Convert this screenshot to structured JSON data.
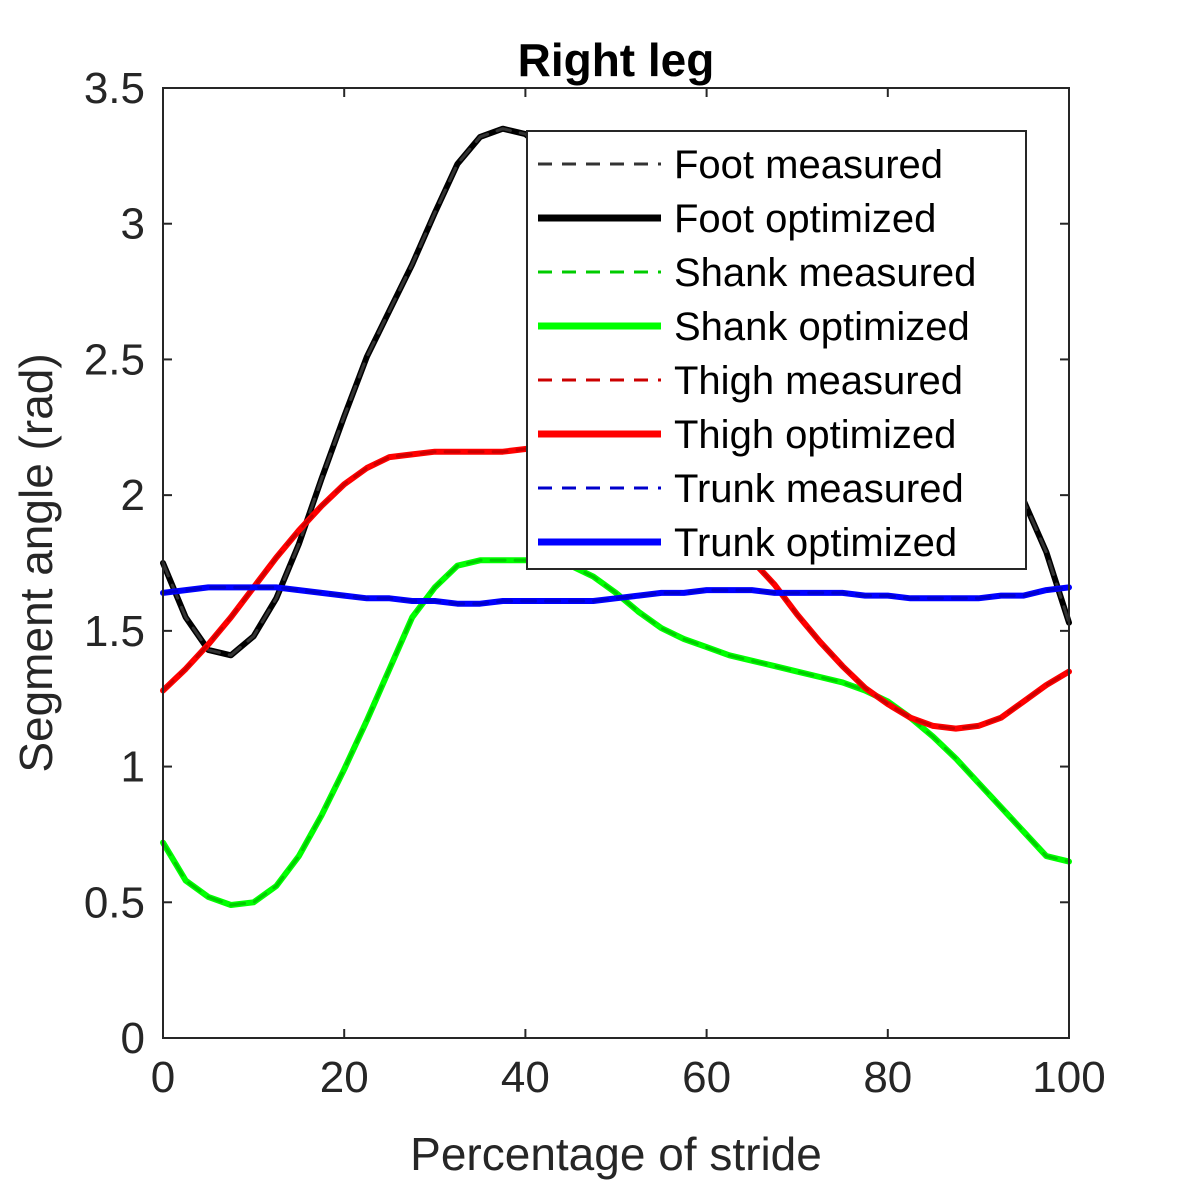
{
  "chart_data": {
    "type": "line",
    "title": "Right leg",
    "xlabel": "Percentage of stride",
    "ylabel": "Segment angle (rad)",
    "xlim": [
      0,
      100
    ],
    "ylim": [
      0,
      3.5
    ],
    "xticks": [
      0,
      20,
      40,
      60,
      80,
      100
    ],
    "yticks": [
      0,
      0.5,
      1,
      1.5,
      2,
      2.5,
      3,
      3.5
    ],
    "ytick_labels": [
      "0",
      "0.5",
      "1",
      "1.5",
      "2",
      "2.5",
      "3",
      "3.5"
    ],
    "xtick_labels": [
      "0",
      "20",
      "40",
      "60",
      "80",
      "100"
    ],
    "grid": false,
    "legend_position": "top-right",
    "x": [
      0,
      2.5,
      5,
      7.5,
      10,
      12.5,
      15,
      17.5,
      20,
      22.5,
      25,
      27.5,
      30,
      32.5,
      35,
      37.5,
      40,
      42.5,
      45,
      47.5,
      50,
      52.5,
      55,
      57.5,
      60,
      62.5,
      65,
      67.5,
      70,
      72.5,
      75,
      77.5,
      80,
      82.5,
      85,
      87.5,
      90,
      92.5,
      95,
      97.5,
      100
    ],
    "series": [
      {
        "name": "Foot measured",
        "color": "#333333",
        "style": "dashed",
        "values": [
          1.75,
          1.55,
          1.43,
          1.41,
          1.48,
          1.62,
          1.82,
          2.06,
          2.29,
          2.51,
          2.68,
          2.85,
          3.04,
          3.22,
          3.32,
          3.35,
          3.33,
          3.26,
          3.18,
          3.08,
          2.95,
          2.84,
          2.74,
          2.66,
          2.6,
          2.56,
          2.53,
          2.52,
          2.51,
          2.5,
          2.5,
          2.51,
          2.53,
          2.54,
          2.5,
          2.4,
          2.28,
          2.14,
          1.98,
          1.79,
          1.53
        ]
      },
      {
        "name": "Foot optimized",
        "color": "#000000",
        "style": "solid",
        "values": [
          1.75,
          1.55,
          1.43,
          1.41,
          1.48,
          1.62,
          1.82,
          2.06,
          2.29,
          2.51,
          2.68,
          2.85,
          3.04,
          3.22,
          3.32,
          3.35,
          3.33,
          3.26,
          3.18,
          3.08,
          2.95,
          2.84,
          2.74,
          2.66,
          2.6,
          2.56,
          2.53,
          2.52,
          2.51,
          2.5,
          2.5,
          2.51,
          2.53,
          2.54,
          2.5,
          2.4,
          2.28,
          2.14,
          1.98,
          1.79,
          1.53
        ]
      },
      {
        "name": "Shank measured",
        "color": "#00cc00",
        "style": "dashed",
        "values": [
          0.72,
          0.58,
          0.52,
          0.49,
          0.5,
          0.56,
          0.67,
          0.82,
          0.99,
          1.17,
          1.36,
          1.55,
          1.66,
          1.74,
          1.76,
          1.76,
          1.76,
          1.76,
          1.74,
          1.7,
          1.64,
          1.57,
          1.51,
          1.47,
          1.44,
          1.41,
          1.39,
          1.37,
          1.35,
          1.33,
          1.31,
          1.28,
          1.24,
          1.18,
          1.11,
          1.03,
          0.94,
          0.85,
          0.76,
          0.67,
          0.65
        ]
      },
      {
        "name": "Shank optimized",
        "color": "#00ff00",
        "style": "solid",
        "values": [
          0.72,
          0.58,
          0.52,
          0.49,
          0.5,
          0.56,
          0.67,
          0.82,
          0.99,
          1.17,
          1.36,
          1.55,
          1.66,
          1.74,
          1.76,
          1.76,
          1.76,
          1.76,
          1.74,
          1.7,
          1.64,
          1.57,
          1.51,
          1.47,
          1.44,
          1.41,
          1.39,
          1.37,
          1.35,
          1.33,
          1.31,
          1.28,
          1.24,
          1.18,
          1.11,
          1.03,
          0.94,
          0.85,
          0.76,
          0.67,
          0.65
        ]
      },
      {
        "name": "Thigh measured",
        "color": "#cc0000",
        "style": "dashed",
        "values": [
          1.28,
          1.36,
          1.45,
          1.55,
          1.66,
          1.77,
          1.87,
          1.96,
          2.04,
          2.1,
          2.14,
          2.15,
          2.16,
          2.16,
          2.16,
          2.16,
          2.17,
          2.18,
          2.18,
          2.17,
          2.14,
          2.1,
          2.04,
          1.97,
          1.9,
          1.83,
          1.76,
          1.67,
          1.56,
          1.46,
          1.37,
          1.29,
          1.23,
          1.18,
          1.15,
          1.14,
          1.15,
          1.18,
          1.24,
          1.3,
          1.35
        ]
      },
      {
        "name": "Thigh optimized",
        "color": "#ff0000",
        "style": "solid",
        "values": [
          1.28,
          1.36,
          1.45,
          1.55,
          1.66,
          1.77,
          1.87,
          1.96,
          2.04,
          2.1,
          2.14,
          2.15,
          2.16,
          2.16,
          2.16,
          2.16,
          2.17,
          2.18,
          2.18,
          2.17,
          2.14,
          2.1,
          2.04,
          1.97,
          1.9,
          1.83,
          1.76,
          1.67,
          1.56,
          1.46,
          1.37,
          1.29,
          1.23,
          1.18,
          1.15,
          1.14,
          1.15,
          1.18,
          1.24,
          1.3,
          1.35
        ]
      },
      {
        "name": "Trunk measured",
        "color": "#0000cc",
        "style": "dashed",
        "values": [
          1.64,
          1.65,
          1.66,
          1.66,
          1.66,
          1.66,
          1.65,
          1.64,
          1.63,
          1.62,
          1.62,
          1.61,
          1.61,
          1.6,
          1.6,
          1.61,
          1.61,
          1.61,
          1.61,
          1.61,
          1.62,
          1.63,
          1.64,
          1.64,
          1.65,
          1.65,
          1.65,
          1.64,
          1.64,
          1.64,
          1.64,
          1.63,
          1.63,
          1.62,
          1.62,
          1.62,
          1.62,
          1.63,
          1.63,
          1.65,
          1.66
        ]
      },
      {
        "name": "Trunk optimized",
        "color": "#0000ff",
        "style": "solid",
        "values": [
          1.64,
          1.65,
          1.66,
          1.66,
          1.66,
          1.66,
          1.65,
          1.64,
          1.63,
          1.62,
          1.62,
          1.61,
          1.61,
          1.6,
          1.6,
          1.61,
          1.61,
          1.61,
          1.61,
          1.61,
          1.62,
          1.63,
          1.64,
          1.64,
          1.65,
          1.65,
          1.65,
          1.64,
          1.64,
          1.64,
          1.64,
          1.63,
          1.63,
          1.62,
          1.62,
          1.62,
          1.62,
          1.63,
          1.63,
          1.65,
          1.66
        ]
      }
    ]
  }
}
